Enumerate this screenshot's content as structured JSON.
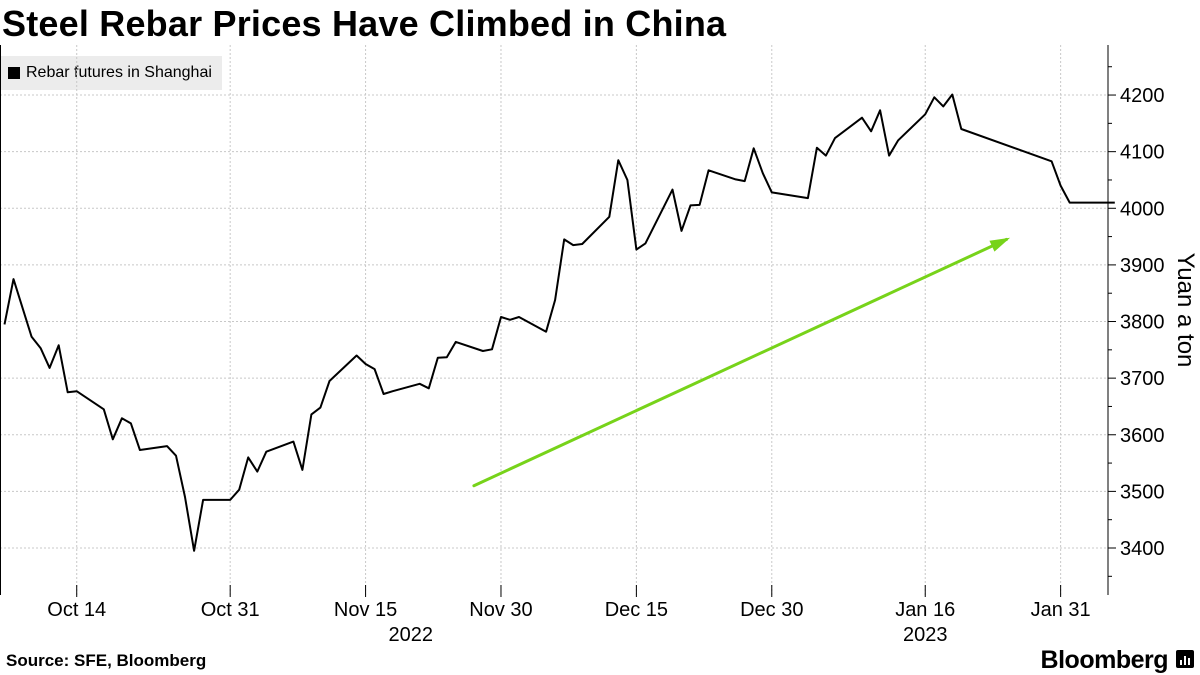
{
  "title": "Steel Rebar Prices Have Climbed in China",
  "source": "Source: SFE, Bloomberg",
  "brand": "Bloomberg",
  "colors": {
    "line": "#000000",
    "arrow": "#77d31a",
    "grid": "#c8c8c8",
    "legend_bg": "#ececec"
  },
  "chart_data": {
    "type": "line",
    "title": "Steel Rebar Prices Have Climbed in China",
    "ylabel": "Yuan a ton",
    "xlabel": "",
    "ylim": [
      3320,
      4290
    ],
    "y_ticks": [
      3400,
      3500,
      3600,
      3700,
      3800,
      3900,
      4000,
      4100,
      4200
    ],
    "y_side": "right",
    "grid": true,
    "legend_position": "top-left",
    "x_ticks": [
      {
        "date": "2022-10-14",
        "label": "Oct 14"
      },
      {
        "date": "2022-10-31",
        "label": "Oct 31"
      },
      {
        "date": "2022-11-15",
        "label": "Nov 15"
      },
      {
        "date": "2022-11-30",
        "label": "Nov 30"
      },
      {
        "date": "2022-12-15",
        "label": "Dec 15"
      },
      {
        "date": "2022-12-30",
        "label": "Dec 30"
      },
      {
        "date": "2023-01-16",
        "label": "Jan 16"
      },
      {
        "date": "2023-01-31",
        "label": "Jan 31"
      }
    ],
    "year_labels": [
      {
        "date": "2022-11-20",
        "label": "2022"
      },
      {
        "date": "2023-01-16",
        "label": "2023"
      }
    ],
    "series": [
      {
        "name": "Rebar futures in Shanghai",
        "x": [
          "2022-10-06",
          "2022-10-07",
          "2022-10-09",
          "2022-10-10",
          "2022-10-11",
          "2022-10-12",
          "2022-10-13",
          "2022-10-14",
          "2022-10-17",
          "2022-10-18",
          "2022-10-19",
          "2022-10-20",
          "2022-10-21",
          "2022-10-24",
          "2022-10-25",
          "2022-10-26",
          "2022-10-27",
          "2022-10-28",
          "2022-10-31",
          "2022-11-01",
          "2022-11-02",
          "2022-11-03",
          "2022-11-04",
          "2022-11-07",
          "2022-11-08",
          "2022-11-09",
          "2022-11-10",
          "2022-11-11",
          "2022-11-14",
          "2022-11-15",
          "2022-11-16",
          "2022-11-17",
          "2022-11-18",
          "2022-11-21",
          "2022-11-22",
          "2022-11-23",
          "2022-11-24",
          "2022-11-25",
          "2022-11-28",
          "2022-11-29",
          "2022-11-30",
          "2022-12-01",
          "2022-12-02",
          "2022-12-05",
          "2022-12-06",
          "2022-12-07",
          "2022-12-08",
          "2022-12-09",
          "2022-12-12",
          "2022-12-13",
          "2022-12-14",
          "2022-12-15",
          "2022-12-16",
          "2022-12-19",
          "2022-12-20",
          "2022-12-21",
          "2022-12-22",
          "2022-12-23",
          "2022-12-26",
          "2022-12-27",
          "2022-12-28",
          "2022-12-29",
          "2022-12-30",
          "2023-01-03",
          "2023-01-04",
          "2023-01-05",
          "2023-01-06",
          "2023-01-09",
          "2023-01-10",
          "2023-01-11",
          "2023-01-12",
          "2023-01-13",
          "2023-01-16",
          "2023-01-17",
          "2023-01-18",
          "2023-01-19",
          "2023-01-20",
          "2023-01-30",
          "2023-01-31",
          "2023-02-01",
          "2023-02-02",
          "2023-02-03",
          "2023-02-06"
        ],
        "y": [
          3795,
          3875,
          3773,
          3753,
          3718,
          3758,
          3675,
          3677,
          3645,
          3592,
          3629,
          3620,
          3573,
          3580,
          3563,
          3490,
          3395,
          3485,
          3485,
          3503,
          3560,
          3535,
          3570,
          3588,
          3538,
          3636,
          3648,
          3695,
          3740,
          3725,
          3716,
          3672,
          3677,
          3690,
          3682,
          3736,
          3737,
          3764,
          3748,
          3751,
          3808,
          3803,
          3808,
          3782,
          3838,
          3945,
          3935,
          3937,
          3985,
          4085,
          4050,
          3927,
          3938,
          4033,
          3960,
          4005,
          4006,
          4067,
          4051,
          4048,
          4106,
          4062,
          4028,
          4018,
          4107,
          4093,
          4124,
          4160,
          4136,
          4173,
          4093,
          4120,
          4166,
          4196,
          4180,
          4201,
          4140,
          4083,
          4040,
          4010,
          4010,
          4010,
          4010
        ]
      }
    ],
    "annotations": [
      {
        "type": "arrow",
        "color": "#77d31a",
        "from": {
          "date": "2022-11-27",
          "y": 3510
        },
        "to": {
          "date": "2023-01-25",
          "y": 3945
        }
      }
    ]
  }
}
